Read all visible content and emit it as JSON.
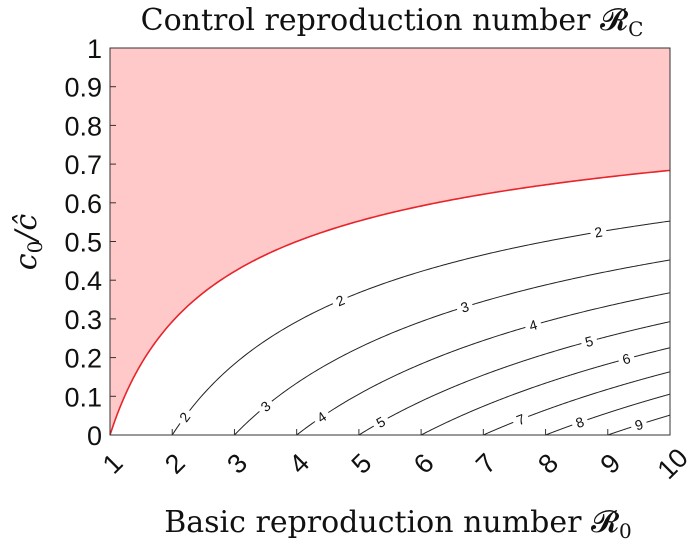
{
  "chart_data": {
    "type": "contour",
    "title": "Control reproduction number 𝓡",
    "title_sub": "C",
    "xlabel": "Basic reproduction number 𝓡",
    "xlabel_sub": "0",
    "ylabel_main": "c",
    "ylabel_sub": "0",
    "ylabel_rest": "/ĉ",
    "xlim": [
      1,
      10
    ],
    "ylim": [
      0,
      1
    ],
    "x_ticks": [
      1,
      2,
      3,
      4,
      5,
      6,
      7,
      8,
      9,
      10
    ],
    "x_tick_labels": [
      "1",
      "2",
      "3",
      "4",
      "5",
      "6",
      "7",
      "8",
      "9",
      "10"
    ],
    "y_ticks": [
      0,
      0.1,
      0.2,
      0.3,
      0.4,
      0.5,
      0.6,
      0.7,
      0.8,
      0.9,
      1
    ],
    "y_tick_labels": [
      "0",
      "0.1",
      "0.2",
      "0.3",
      "0.4",
      "0.5",
      "0.6",
      "0.7",
      "0.8",
      "0.9",
      "1"
    ],
    "boundary": {
      "level": 1,
      "color": "#e8242b"
    },
    "shaded_region_color": "#ffc9c9",
    "contours": [
      {
        "level": 2,
        "label": "2",
        "label_positions": [
          [
            2.2,
            0.1
          ],
          [
            4.7,
            0.58
          ],
          [
            8.85,
            0.77
          ]
        ]
      },
      {
        "level": 3,
        "label": "3",
        "label_positions": [
          [
            3.5,
            0.17
          ],
          [
            6.7,
            0.55
          ]
        ]
      },
      {
        "level": 4,
        "label": "4",
        "label_positions": [
          [
            4.4,
            0.13
          ],
          [
            7.8,
            0.49
          ]
        ]
      },
      {
        "level": 5,
        "label": "5",
        "label_positions": [
          [
            5.35,
            0.08
          ],
          [
            8.7,
            0.44
          ]
        ]
      },
      {
        "level": 6,
        "label": "6",
        "label_positions": [
          [
            9.3,
            0.38
          ]
        ]
      },
      {
        "level": 7,
        "label": "7",
        "label_positions": [
          [
            7.6,
            0.11
          ]
        ]
      },
      {
        "level": 8,
        "label": "8",
        "label_positions": [
          [
            8.55,
            0.07
          ]
        ]
      },
      {
        "level": 9,
        "label": "9",
        "label_positions": [
          [
            9.5,
            0.05
          ]
        ]
      }
    ],
    "grid": false,
    "legend": "none"
  }
}
